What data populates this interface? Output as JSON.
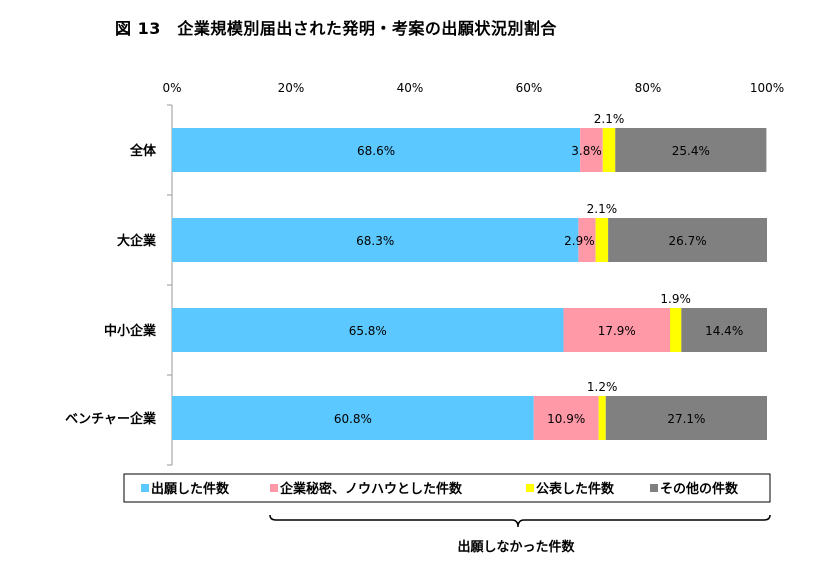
{
  "chart_data": {
    "type": "bar",
    "orientation": "horizontal",
    "stacked": true,
    "title": "図 13　企業規模別届出された発明・考案の出願状況別割合",
    "categories": [
      "全体",
      "大企業",
      "中小企業",
      "ベンチャー企業"
    ],
    "xlim": [
      0,
      100
    ],
    "xticks": [
      0,
      20,
      40,
      60,
      80,
      100
    ],
    "xtick_labels": [
      "0%",
      "20%",
      "40%",
      "60%",
      "80%",
      "100%"
    ],
    "grid": false,
    "legend_position": "bottom",
    "series": [
      {
        "name": "出願した件数",
        "color": "#5bc8ff",
        "values": [
          68.6,
          68.3,
          65.8,
          60.8
        ],
        "labels": [
          "68.6%",
          "68.3%",
          "65.8%",
          "60.8%"
        ]
      },
      {
        "name": "企業秘密、ノウハウとした件数",
        "color": "#ff99a8",
        "values": [
          3.8,
          2.9,
          17.9,
          10.9
        ],
        "labels": [
          "3.8%",
          "2.9%",
          "17.9%",
          "10.9%"
        ]
      },
      {
        "name": "公表した件数",
        "color": "#ffff00",
        "values": [
          2.1,
          2.1,
          1.9,
          1.2
        ],
        "labels": [
          "2.1%",
          "2.1%",
          "1.9%",
          "1.2%"
        ]
      },
      {
        "name": "その他の件数",
        "color": "#808080",
        "values": [
          25.4,
          26.7,
          14.4,
          27.1
        ],
        "labels": [
          "25.4%",
          "26.7%",
          "14.4%",
          "27.1%"
        ]
      }
    ],
    "annotation": "出願しなかった件数"
  }
}
